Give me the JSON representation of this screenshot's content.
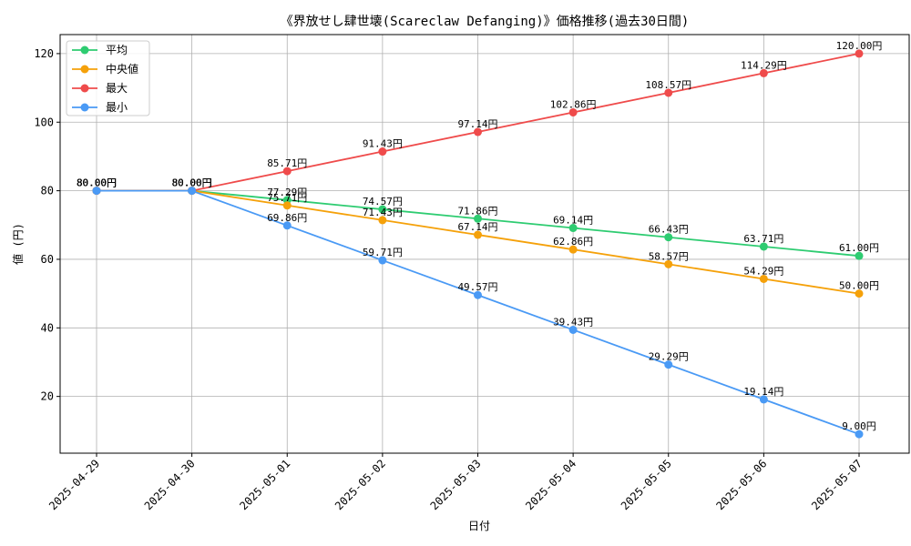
{
  "chart_data": {
    "type": "line",
    "title": "《界放せし肆世壊(Scareclaw Defanging)》価格推移(過去30日間)",
    "xlabel": "日付",
    "ylabel": "値 (円)",
    "ylim": [
      3.45,
      125.55
    ],
    "yticks": [
      20,
      40,
      60,
      80,
      100,
      120
    ],
    "grid": true,
    "legend_position": "top-left",
    "label_suffix": "円",
    "categories": [
      "2025-04-29",
      "2025-04-30",
      "2025-05-01",
      "2025-05-02",
      "2025-05-03",
      "2025-05-04",
      "2025-05-05",
      "2025-05-06",
      "2025-05-07"
    ],
    "series": [
      {
        "name": "平均",
        "color": "#2ecc71",
        "values": [
          80.0,
          80.0,
          77.29,
          74.57,
          71.86,
          69.14,
          66.43,
          63.71,
          61.0
        ]
      },
      {
        "name": "中央値",
        "color": "#f5a10a",
        "values": [
          80.0,
          80.0,
          75.71,
          71.43,
          67.14,
          62.86,
          58.57,
          54.29,
          50.0
        ]
      },
      {
        "name": "最大",
        "color": "#ef4b4b",
        "values": [
          80.0,
          80.0,
          85.71,
          91.43,
          97.14,
          102.86,
          108.57,
          114.29,
          120.0
        ]
      },
      {
        "name": "最小",
        "color": "#4a9af5",
        "values": [
          80.0,
          80.0,
          69.86,
          59.71,
          49.57,
          39.43,
          29.29,
          19.14,
          9.0
        ]
      }
    ]
  }
}
